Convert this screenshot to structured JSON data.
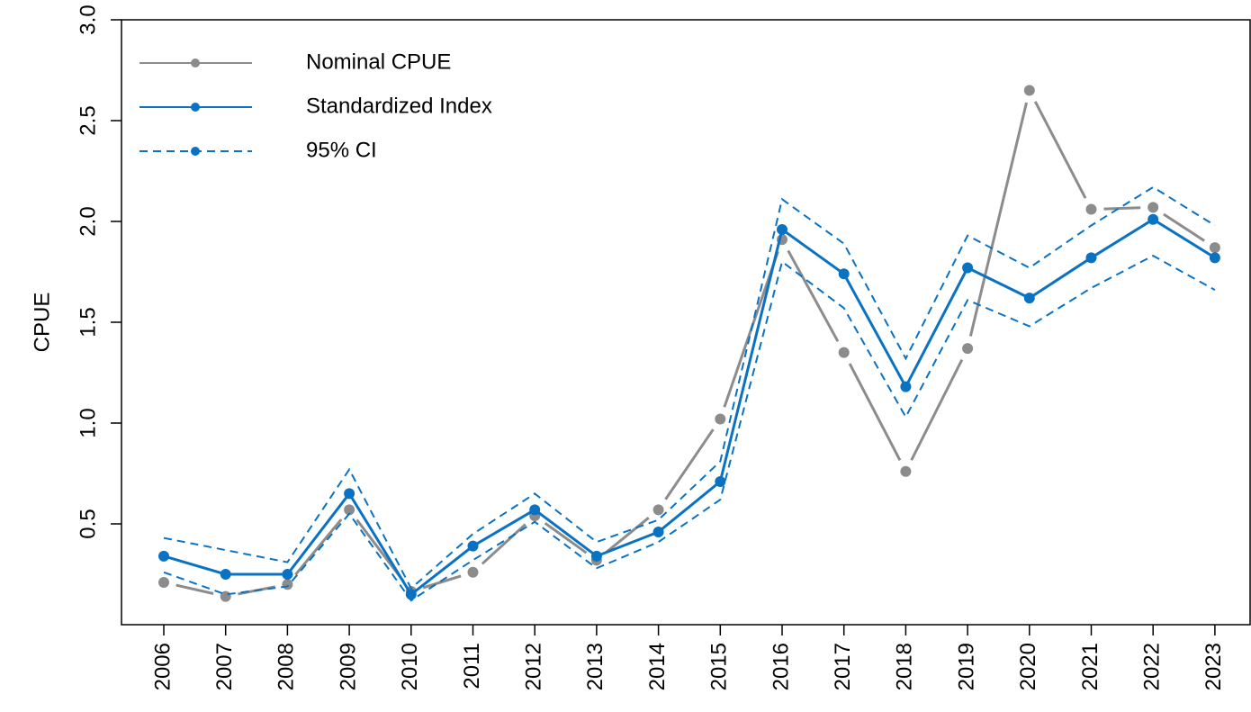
{
  "chart_data": {
    "type": "line",
    "ylabel": "CPUE",
    "categories": [
      "2006",
      "2007",
      "2008",
      "2009",
      "2010",
      "2011",
      "2012",
      "2013",
      "2014",
      "2015",
      "2016",
      "2017",
      "2018",
      "2019",
      "2020",
      "2021",
      "2022",
      "2023"
    ],
    "series": [
      {
        "name": "Nominal CPUE",
        "color": "#8c8c8c",
        "style": "solid",
        "markers": true,
        "gaps": true,
        "values": [
          0.21,
          0.14,
          0.2,
          0.57,
          0.165,
          0.26,
          0.54,
          0.32,
          0.57,
          1.02,
          1.91,
          1.35,
          0.76,
          1.37,
          2.65,
          2.06,
          2.07,
          1.87
        ]
      },
      {
        "name": "Standardized Index",
        "color": "#0a72c2",
        "style": "solid",
        "markers": true,
        "gaps": false,
        "values": [
          0.34,
          0.25,
          0.25,
          0.65,
          0.15,
          0.39,
          0.57,
          0.34,
          0.46,
          0.71,
          1.96,
          1.74,
          1.18,
          1.77,
          1.62,
          1.82,
          2.01,
          1.82
        ]
      },
      {
        "name": "95% CI",
        "color": "#0a72c2",
        "style": "dashed",
        "markers": false,
        "gaps": false,
        "values": [
          0.43,
          0.37,
          0.31,
          0.77,
          0.18,
          0.45,
          0.65,
          0.41,
          0.52,
          0.81,
          2.11,
          1.89,
          1.32,
          1.93,
          1.77,
          1.98,
          2.17,
          1.98
        ]
      },
      {
        "color": "#0a72c2",
        "style": "dashed",
        "markers": false,
        "gaps": false,
        "values": [
          0.26,
          0.15,
          0.19,
          0.55,
          0.12,
          0.32,
          0.51,
          0.28,
          0.41,
          0.62,
          1.8,
          1.57,
          1.03,
          1.61,
          1.48,
          1.67,
          1.83,
          1.66
        ]
      }
    ],
    "ylim": [
      0,
      3
    ],
    "yticks": [
      0.5,
      {
        "value": 1,
        "label": "1.0"
      },
      1.5,
      {
        "value": 2,
        "label": "2.0"
      },
      2.5,
      {
        "value": 3,
        "label": "3.0"
      }
    ],
    "legend": "top-left"
  }
}
